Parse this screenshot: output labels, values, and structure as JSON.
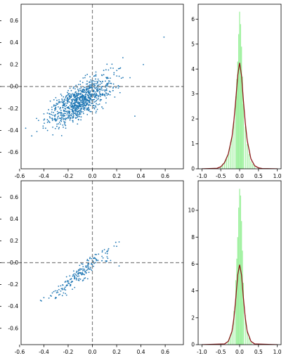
{
  "figure": {
    "background": "#ffffff"
  },
  "chart_data": [
    {
      "type": "scatter",
      "panel": "top-left",
      "xlim": [
        -0.75,
        0.75
      ],
      "ylim": [
        -0.75,
        0.75
      ],
      "xticks": [
        "-0.6",
        "-0.4",
        "-0.2",
        "0.0",
        "0.2",
        "0.4",
        "0.6"
      ],
      "yticks": [
        "-0.6",
        "-0.4",
        "-0.2",
        "0.0",
        "0.2",
        "0.4",
        "0.6"
      ],
      "reference_lines": {
        "x": 0,
        "y": 0,
        "style": "dashed",
        "color": "#808080"
      },
      "point_color": "#1f77b4",
      "point_count": 900,
      "distribution": {
        "center": [
          -0.1,
          -0.13
        ],
        "sd_x": 0.13,
        "slope": 0.6,
        "residual_sd": 0.075
      },
      "outliers": [
        [
          0.59,
          0.45
        ],
        [
          0.42,
          0.2
        ],
        [
          0.31,
          0.08
        ],
        [
          0.35,
          -0.27
        ],
        [
          -0.5,
          -0.45
        ],
        [
          -0.55,
          -0.38
        ],
        [
          -0.28,
          -0.34
        ],
        [
          -0.22,
          -0.38
        ]
      ]
    },
    {
      "type": "bar",
      "subtype": "histogram-with-density",
      "panel": "top-right",
      "xlim": [
        -1.1,
        1.1
      ],
      "ylim": [
        0,
        6.6
      ],
      "xticks": [
        "-1.0",
        "-0.5",
        "0.0",
        "0.5",
        "1.0"
      ],
      "yticks": [
        "0",
        "1",
        "2",
        "3",
        "4",
        "5",
        "6"
      ],
      "bar_color": "#90ee90",
      "curve_color": "#8b1a1a",
      "bins": {
        "x": [
          -0.5,
          -0.45,
          -0.4,
          -0.35,
          -0.3,
          -0.25,
          -0.2,
          -0.15,
          -0.1,
          -0.075,
          -0.05,
          -0.025,
          0.0,
          0.025,
          0.05,
          0.075,
          0.1,
          0.15,
          0.2,
          0.25,
          0.3,
          0.35,
          0.4,
          0.5
        ],
        "height": [
          0.1,
          0.2,
          0.3,
          0.4,
          0.6,
          0.9,
          1.3,
          1.9,
          2.9,
          3.6,
          4.3,
          5.4,
          6.3,
          5.8,
          4.9,
          3.7,
          2.6,
          1.7,
          1.0,
          0.6,
          0.3,
          0.2,
          0.1,
          0.05
        ]
      },
      "density": {
        "x": [
          -1.0,
          -0.6,
          -0.5,
          -0.4,
          -0.3,
          -0.2,
          -0.15,
          -0.1,
          -0.05,
          0.0,
          0.05,
          0.1,
          0.15,
          0.2,
          0.3,
          0.4,
          0.5,
          0.6,
          1.0
        ],
        "y": [
          0,
          0.02,
          0.08,
          0.25,
          0.6,
          1.3,
          1.95,
          2.8,
          3.75,
          4.25,
          3.75,
          2.75,
          1.85,
          1.15,
          0.4,
          0.12,
          0.04,
          0.01,
          0
        ]
      }
    },
    {
      "type": "scatter",
      "panel": "bottom-left",
      "xlim": [
        -0.75,
        0.75
      ],
      "ylim": [
        -0.75,
        0.75
      ],
      "xticks": [
        "-0.6",
        "-0.4",
        "-0.2",
        "0.0",
        "0.2",
        "0.4",
        "0.6"
      ],
      "yticks": [
        "-0.6",
        "-0.4",
        "-0.2",
        "0.0",
        "0.2",
        "0.4",
        "0.6"
      ],
      "reference_lines": {
        "x": 0,
        "y": 0,
        "style": "dashed",
        "color": "#808080"
      },
      "point_color": "#1f77b4",
      "point_count": 190,
      "distribution": {
        "center": [
          -0.1,
          -0.1
        ],
        "sd_x": 0.12,
        "slope": 0.9,
        "residual_sd": 0.04
      },
      "outliers": [
        [
          0.22,
          0.19
        ],
        [
          0.2,
          0.15
        ],
        [
          0.18,
          0.0
        ],
        [
          0.15,
          0.02
        ],
        [
          0.22,
          -0.03
        ],
        [
          -0.42,
          -0.35
        ],
        [
          -0.4,
          -0.32
        ]
      ]
    },
    {
      "type": "bar",
      "subtype": "histogram-with-density",
      "panel": "bottom-right",
      "xlim": [
        -1.1,
        1.1
      ],
      "ylim": [
        0,
        12.2
      ],
      "xticks": [
        "-1.0",
        "-0.5",
        "0.0",
        "0.5",
        "1.0"
      ],
      "yticks": [
        "0",
        "2",
        "4",
        "6",
        "8",
        "10"
      ],
      "bar_color": "#90ee90",
      "curve_color": "#8b1a1a",
      "bins": {
        "x": [
          -0.3,
          -0.25,
          -0.2,
          -0.15,
          -0.1,
          -0.075,
          -0.05,
          -0.025,
          0.0,
          0.025,
          0.05,
          0.075,
          0.1,
          0.15,
          0.2,
          0.25,
          0.3
        ],
        "height": [
          0.3,
          0.6,
          1.2,
          2.5,
          4.8,
          6.4,
          8.0,
          10.2,
          11.6,
          11.1,
          9.2,
          7.0,
          4.6,
          2.2,
          1.0,
          0.5,
          0.2
        ]
      },
      "density": {
        "x": [
          -1.0,
          -0.4,
          -0.3,
          -0.2,
          -0.15,
          -0.1,
          -0.05,
          0.0,
          0.05,
          0.1,
          0.15,
          0.2,
          0.3,
          0.4,
          1.0
        ],
        "y": [
          0,
          0.05,
          0.25,
          1.0,
          2.0,
          3.5,
          5.2,
          5.95,
          5.2,
          3.5,
          2.0,
          1.0,
          0.25,
          0.05,
          0
        ]
      }
    }
  ]
}
